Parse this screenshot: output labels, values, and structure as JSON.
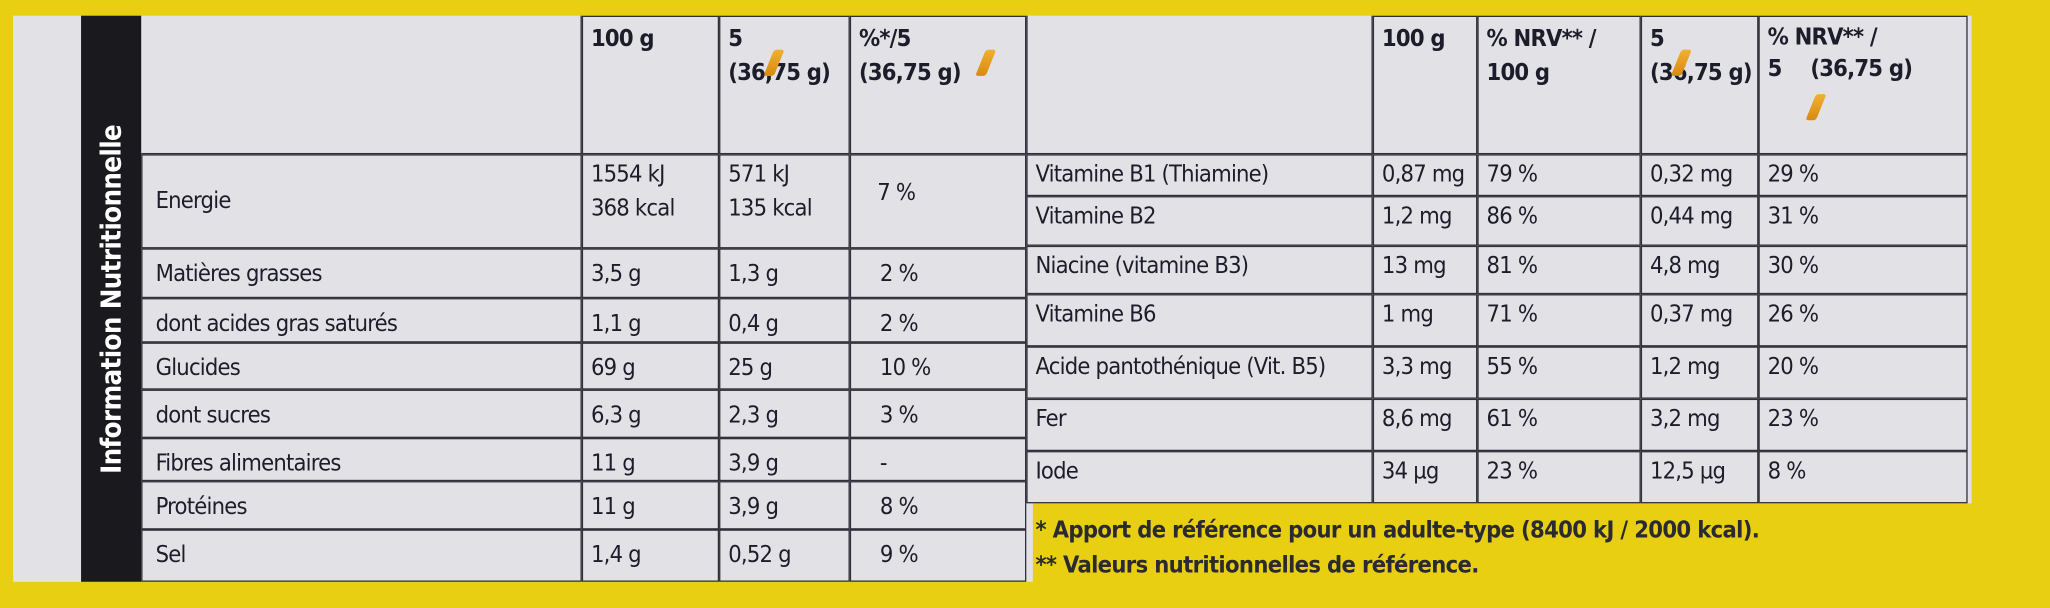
{
  "side_title": "Information Nutritionnelle",
  "left_table": {
    "header": [
      [
        "100 g"
      ],
      [
        "5",
        "(36,75 g)"
      ],
      [
        "%*/5",
        "(36,75 g)"
      ]
    ],
    "rows": [
      [
        "Energie",
        [
          "1554 kJ",
          "368 kcal"
        ],
        [
          "571 kJ",
          "135 kcal"
        ],
        "7 %"
      ],
      [
        "Matières grasses",
        "3,5 g",
        "1,3 g",
        "2 %"
      ],
      [
        "dont acides gras saturés",
        "1,1 g",
        "0,4 g",
        "2 %"
      ],
      [
        "Glucides",
        "69 g",
        "25 g",
        "10 %"
      ],
      [
        "dont sucres",
        "6,3 g",
        "2,3 g",
        "3 %"
      ],
      [
        "Fibres alimentaires",
        "11 g",
        "3,9 g",
        "-"
      ],
      [
        "Protéines",
        "11 g",
        "3,9 g",
        "8 %"
      ],
      [
        "Sel",
        "1,4 g",
        "0,52 g",
        "9 %"
      ]
    ]
  },
  "right_table": {
    "header": [
      [
        "100 g"
      ],
      [
        "% NRV** /",
        "100 g"
      ],
      [
        "5",
        "(36,75 g)"
      ],
      [
        "% NRV** /",
        "5",
        "(36,75 g)"
      ]
    ],
    "rows": [
      [
        "Vitamine B1 (Thiamine)",
        "0,87 mg",
        "79 %",
        "0,32 mg",
        "29 %"
      ],
      [
        "Vitamine B2",
        "1,2 mg",
        "86 %",
        "0,44 mg",
        "31 %"
      ],
      [
        "Niacine (vitamine B3)",
        "13 mg",
        "81 %",
        "4,8 mg",
        "30 %"
      ],
      [
        "Vitamine B6",
        "1 mg",
        "71 %",
        "0,37 mg",
        "26 %"
      ],
      [
        "Acide pantothénique (Vit. B5)",
        "3,3 mg",
        "55 %",
        "1,2 mg",
        "20 %"
      ],
      [
        "Fer",
        "8,6 mg",
        "61 %",
        "3,2 mg",
        "23 %"
      ],
      [
        "Iode",
        "34 µg",
        "23 %",
        "12,5 µg",
        "8 %"
      ]
    ]
  },
  "footnotes": [
    "* Apport de référence pour un adulte-type (8400 kJ / 2000 kcal).",
    "** Valeurs nutritionnelles de référence."
  ]
}
